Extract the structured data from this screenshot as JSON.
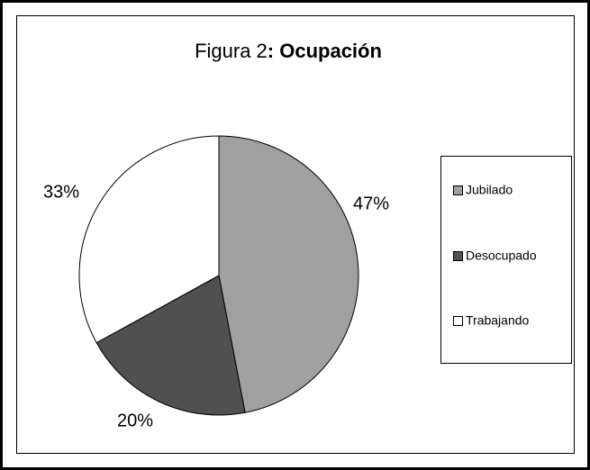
{
  "chart_data": {
    "type": "pie",
    "title": {
      "regular": "Figura 2",
      "bold": ": Ocupación"
    },
    "categories": [
      "Jubilado",
      "Desocupado",
      "Trabajando"
    ],
    "values": [
      47,
      20,
      33
    ],
    "value_labels": [
      "47%",
      "20%",
      "33%"
    ],
    "colors": [
      "#a0a0a0",
      "#505050",
      "#ffffff"
    ],
    "legend": "right"
  }
}
